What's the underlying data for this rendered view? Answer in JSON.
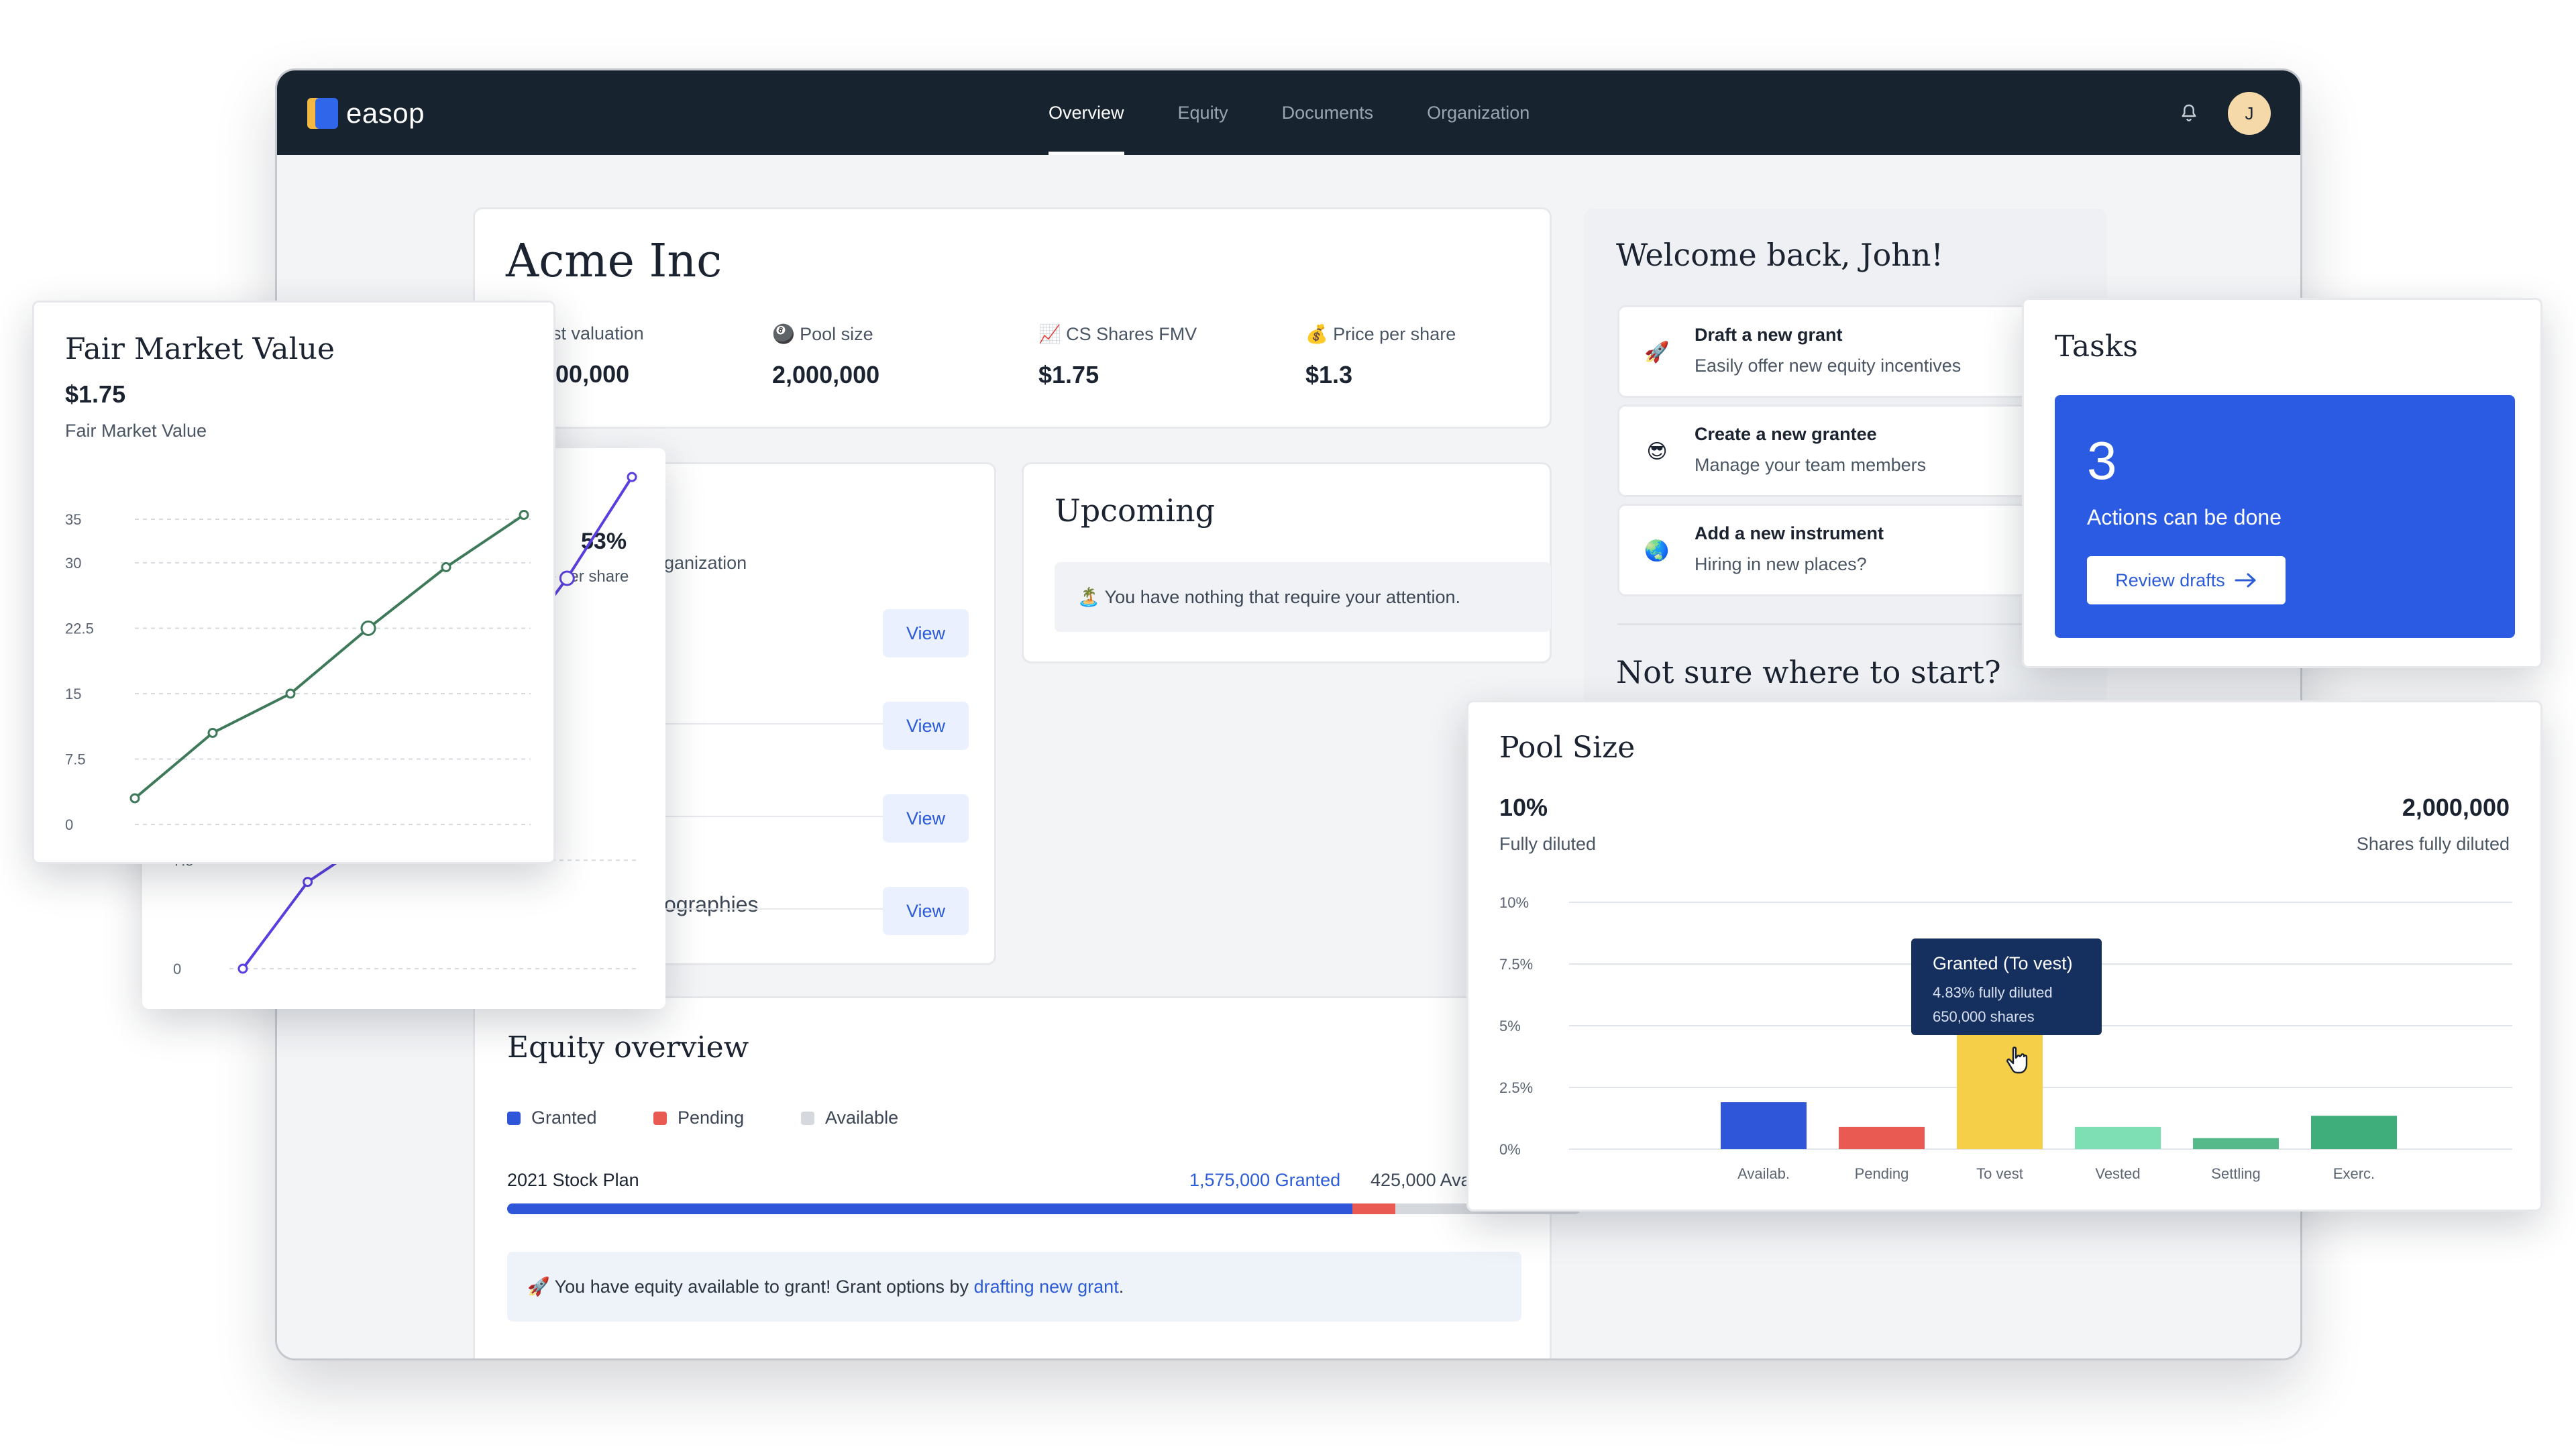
{
  "app": {
    "logo_text": "easop",
    "nav": [
      {
        "label": "Overview",
        "active": true
      },
      {
        "label": "Equity",
        "active": false
      },
      {
        "label": "Documents",
        "active": false
      },
      {
        "label": "Organization",
        "active": false
      }
    ],
    "avatar_initial": "J",
    "bell_icon": "bell-icon"
  },
  "company": {
    "name": "Acme Inc",
    "stats": [
      {
        "label": "est valuation",
        "value": "000,000"
      },
      {
        "label": "Pool size",
        "value": "2,000,000",
        "emoji": "🎱"
      },
      {
        "label": "CS Shares FMV",
        "value": "$1.75",
        "emoji": "📈"
      },
      {
        "label": "Price per share",
        "value": "$1.3",
        "emoji": "💰"
      }
    ]
  },
  "left_list": {
    "percent": "53%",
    "percent_sub": "e per share",
    "org_fragment": "ganization",
    "graphies_fragment": "ographies",
    "view_labels": [
      "View",
      "View",
      "View",
      "View"
    ]
  },
  "upcoming": {
    "title": "Upcoming",
    "note": "You have nothing that require your attention.",
    "emoji": "🏝️"
  },
  "equity": {
    "title": "Equity overview",
    "legend": [
      {
        "label": "Granted",
        "color": "#2f56d9"
      },
      {
        "label": "Pending",
        "color": "#e85a52"
      },
      {
        "label": "Available",
        "color": "#d5d8dd"
      }
    ],
    "plan_name": "2021 Stock Plan",
    "granted_text": "1,575,000 Granted",
    "available_text": "425,000 Ava",
    "granted_fraction": 0.7875,
    "pending_fraction": 0.04,
    "banner_prefix": "You have equity available to grant! Grant options by ",
    "banner_link": "drafting new grant",
    "banner_suffix": ".",
    "banner_emoji": "🚀"
  },
  "welcome": {
    "title": "Welcome back, John!",
    "actions": [
      {
        "title": "Draft a new grant",
        "subtitle": "Easily offer new equity incentives",
        "emoji": "🚀"
      },
      {
        "title": "Create a new grantee",
        "subtitle": "Manage your team members",
        "emoji": "😎"
      },
      {
        "title": "Add a new instrument",
        "subtitle": "Hiring in new places?",
        "emoji": "🌏"
      }
    ],
    "not_sure": "Not sure where to start?"
  },
  "tasks": {
    "title": "Tasks",
    "count": "3",
    "subtitle": "Actions can be done",
    "button": "Review drafts"
  },
  "fmv": {
    "title": "Fair Market Value",
    "value": "$1.75",
    "subtitle": "Fair Market Value"
  },
  "pool": {
    "title": "Pool Size",
    "percent": "10%",
    "percent_label": "Fully diluted",
    "shares": "2,000,000",
    "shares_label": "Shares fully diluted",
    "tooltip": {
      "title": "Granted (To vest)",
      "line1": "4.83% fully diluted",
      "line2": "650,000 shares"
    }
  },
  "chart_data": [
    {
      "type": "line",
      "title": "Fair Market Value",
      "x": [
        0,
        1,
        2,
        3,
        4,
        5
      ],
      "series": [
        {
          "values": [
            3,
            10.5,
            15,
            22.5,
            29.5,
            35.5
          ],
          "color": "#3e7a5a"
        }
      ],
      "yticks": [
        "0",
        "7.5",
        "15",
        "22.5",
        "30",
        "35"
      ],
      "ylim": [
        0,
        36
      ],
      "grid": true
    },
    {
      "type": "line",
      "x": [
        0,
        1,
        2,
        3,
        4,
        5,
        6
      ],
      "series": [
        {
          "values": [
            0,
            6,
            9,
            15,
            21,
            27,
            34
          ],
          "color": "#5b3ee0"
        }
      ],
      "yticks": [
        "0",
        "7.5"
      ],
      "ylim": [
        0,
        36
      ],
      "grid": true
    },
    {
      "type": "bar",
      "title": "Pool Size",
      "categories": [
        "Availab.",
        "Pending",
        "To vest",
        "Vested",
        "Settling",
        "Exerc."
      ],
      "values": [
        1.9,
        0.9,
        4.83,
        0.9,
        0.45,
        1.35
      ],
      "colors": [
        "#2f56d9",
        "#e85a52",
        "#f5cf48",
        "#7ddfb3",
        "#56b98a",
        "#3fae7a"
      ],
      "yticks": [
        "0%",
        "2.5%",
        "5%",
        "7.5%",
        "10%"
      ],
      "ylim": [
        0,
        10
      ],
      "grid": true
    }
  ]
}
